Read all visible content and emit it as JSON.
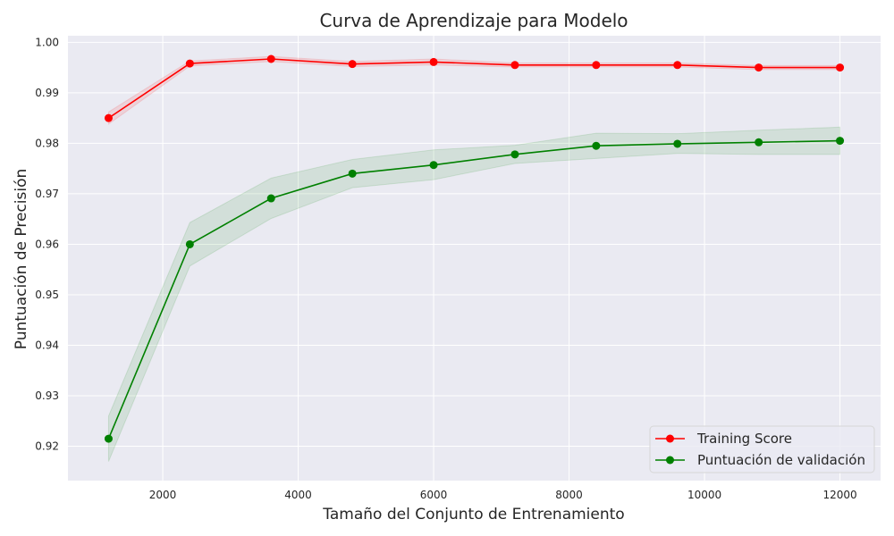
{
  "chart_data": {
    "type": "line",
    "title": "Curva de Aprendizaje para Modelo",
    "xlabel": "Tamaño del Conjunto de Entrenamiento",
    "ylabel": "Puntuación de Precisión",
    "xlim": [
      600,
      12600
    ],
    "ylim": [
      0.9132,
      1.0013
    ],
    "xticks": [
      2000,
      4000,
      6000,
      8000,
      10000,
      12000
    ],
    "xtick_labels": [
      "2000",
      "4000",
      "6000",
      "8000",
      "10000",
      "12000"
    ],
    "yticks": [
      0.92,
      0.93,
      0.94,
      0.95,
      0.96,
      0.97,
      0.98,
      0.99,
      1.0
    ],
    "ytick_labels": [
      "0.92",
      "0.93",
      "0.94",
      "0.95",
      "0.96",
      "0.97",
      "0.98",
      "0.99",
      "1.00"
    ],
    "grid": true,
    "legend_position": "bottom-right",
    "x": [
      1200,
      2400,
      3600,
      4800,
      6000,
      7200,
      8400,
      9600,
      10800,
      12000
    ],
    "series": [
      {
        "name": "Training Score",
        "color": "#ff0000",
        "band_color": "#ff0000",
        "values": [
          0.985,
          0.9958,
          0.9967,
          0.9957,
          0.9961,
          0.9955,
          0.9955,
          0.9955,
          0.995,
          0.995
        ],
        "lower": [
          0.9838,
          0.9953,
          0.9962,
          0.9952,
          0.9955,
          0.9951,
          0.9951,
          0.9951,
          0.9946,
          0.9946
        ],
        "upper": [
          0.9862,
          0.9963,
          0.9972,
          0.9962,
          0.9967,
          0.9959,
          0.9959,
          0.9959,
          0.9954,
          0.9954
        ]
      },
      {
        "name": "Puntuación de validación",
        "color": "#008000",
        "band_color": "#008000",
        "values": [
          0.9215,
          0.96,
          0.9691,
          0.974,
          0.9757,
          0.9778,
          0.9795,
          0.9799,
          0.9802,
          0.9805
        ],
        "lower": [
          0.917,
          0.9557,
          0.9651,
          0.9712,
          0.9728,
          0.976,
          0.977,
          0.978,
          0.9778,
          0.9778
        ],
        "upper": [
          0.926,
          0.9643,
          0.9731,
          0.9768,
          0.9787,
          0.9796,
          0.982,
          0.9819,
          0.9826,
          0.9832
        ]
      }
    ]
  }
}
